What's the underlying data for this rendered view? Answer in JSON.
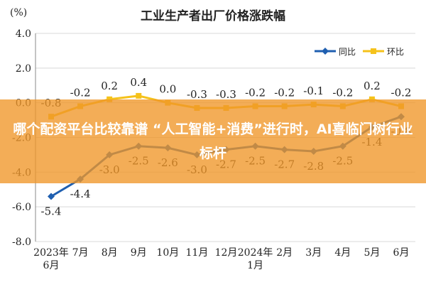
{
  "chart_data": {
    "type": "line",
    "title": "工业生产者出厂价格涨跌幅",
    "y_label": "(%)",
    "categories": [
      "2023年\n6月",
      "7月",
      "8月",
      "9月",
      "10月",
      "11月",
      "12月",
      "2024年\n1月",
      "2月",
      "3月",
      "4月",
      "5月",
      "6月"
    ],
    "series": [
      {
        "name": "同比",
        "color": "#1f5fb0",
        "values": [
          -5.4,
          -4.4,
          -3.0,
          -2.5,
          -2.6,
          -3.0,
          -2.7,
          -2.5,
          -2.7,
          -2.8,
          -2.5,
          -1.4,
          -0.8
        ],
        "value_labels": [
          "-5.4",
          "-4.4",
          "-3.0",
          "-2.5",
          "-2.6",
          "-3.0",
          "-2.7",
          "-2.5",
          "-2.7",
          "-2.8",
          "-2.5",
          "-1.4",
          "-0.8"
        ]
      },
      {
        "name": "环比",
        "color": "#f5c21b",
        "values": [
          -0.8,
          -0.2,
          0.2,
          0.4,
          0.0,
          -0.3,
          -0.3,
          -0.2,
          -0.2,
          -0.1,
          -0.2,
          0.2,
          -0.2
        ],
        "value_labels": [
          "-0.8",
          "-0.2",
          "0.2",
          "0.4",
          "0.0",
          "-0.3",
          "-0.3",
          "-0.2",
          "-0.2",
          "-0.1",
          "-0.2",
          "0.2",
          "-0.2"
        ]
      }
    ],
    "ylim": [
      -8,
      4
    ],
    "yticks": [
      {
        "value": 4,
        "label": "4.0"
      },
      {
        "value": 2,
        "label": "2.0"
      },
      {
        "value": 0,
        "label": "0.0"
      },
      {
        "value": -2,
        "label": "-2.0"
      },
      {
        "value": -4,
        "label": "-4.0"
      },
      {
        "value": -6,
        "label": "-6.0"
      },
      {
        "value": -8,
        "label": "-8.0"
      }
    ],
    "grid": true,
    "legend": "top-right"
  },
  "banner": {
    "text": "哪个配资平台比较靠谱 “人工智能+消费”进行时，AI喜临门树行业标杆"
  }
}
